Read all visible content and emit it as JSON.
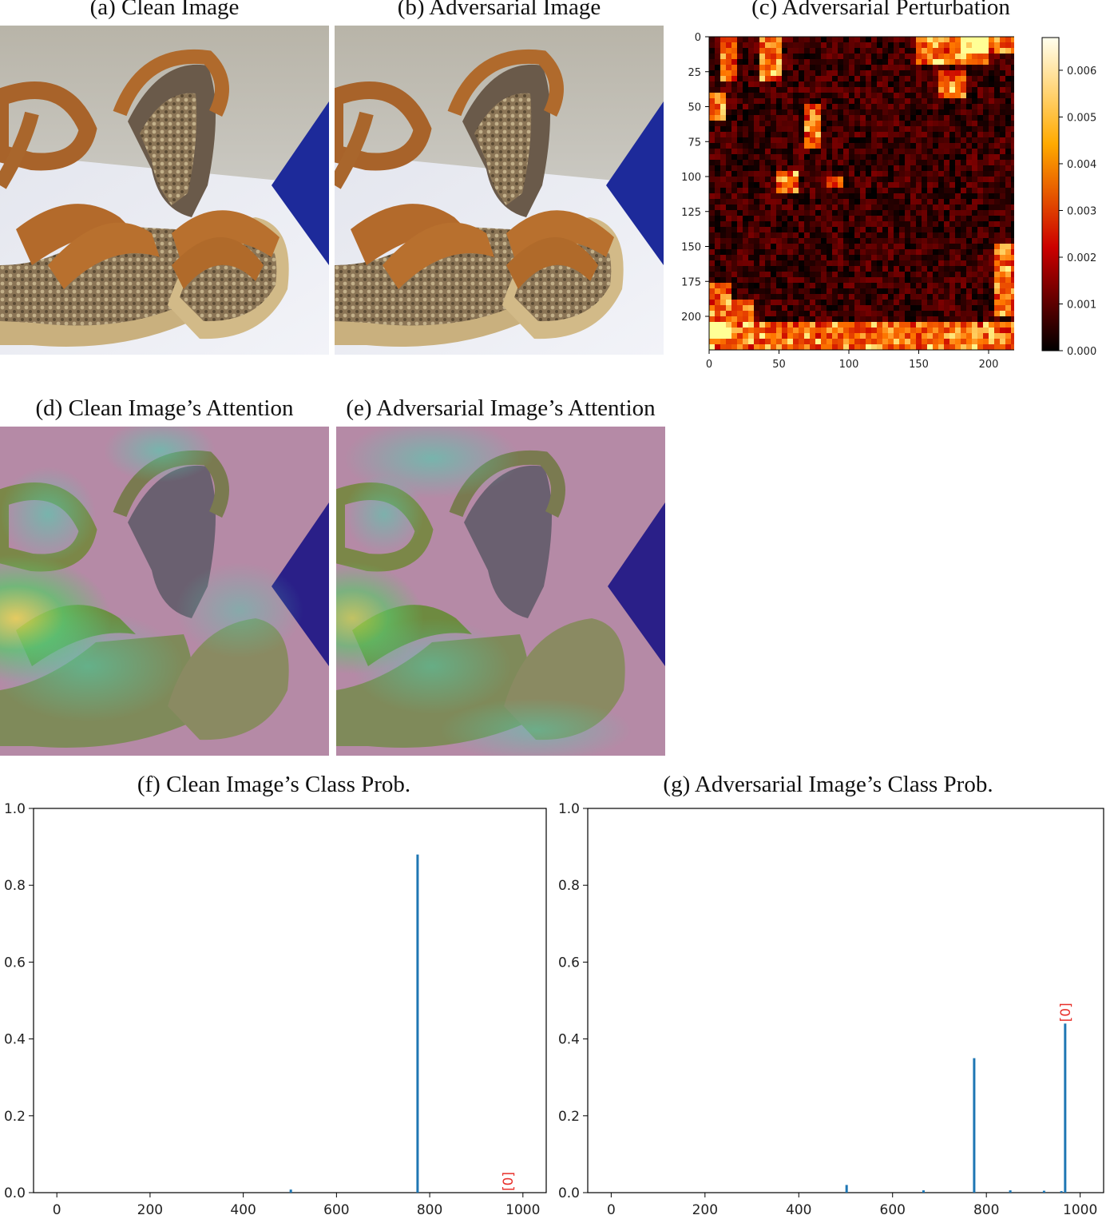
{
  "titles": {
    "a": "(a) Clean Image",
    "b": "(b) Adversarial Image",
    "c": "(c) Adversarial Perturbation",
    "d": "(d) Clean Image’s Attention",
    "e": "(e) Adversarial Image’s Attention",
    "f": "(f) Clean Image’s Class Prob.",
    "g": "(g) Adversarial Image’s Class Prob."
  },
  "colors": {
    "bar": "#1f77b4",
    "annotation": "#e8302a",
    "heat_low": "#000000",
    "heat_mid": "#cc0000",
    "heat_high": "#ffff99"
  },
  "chart_data": [
    {
      "type": "heatmap",
      "title": "(c) Adversarial Perturbation",
      "x_ticks": [
        "0",
        "50",
        "100",
        "150",
        "200"
      ],
      "y_ticks": [
        "0",
        "25",
        "50",
        "75",
        "100",
        "125",
        "150",
        "175",
        "200"
      ],
      "xlim": [
        0,
        224
      ],
      "ylim": [
        224,
        0
      ],
      "colormap": "hot",
      "colorbar_ticks": [
        "0.000",
        "0.001",
        "0.002",
        "0.003",
        "0.004",
        "0.005",
        "0.006"
      ],
      "colorbar_range": [
        0,
        0.0067
      ]
    },
    {
      "type": "bar",
      "title": "(f) Clean Image’s Class Prob.",
      "xlim": [
        -50,
        1050
      ],
      "ylim": [
        0,
        1.0
      ],
      "x_ticks": [
        "0",
        "200",
        "400",
        "600",
        "800",
        "1000"
      ],
      "y_ticks": [
        "0.0",
        "0.2",
        "0.4",
        "0.6",
        "0.8",
        "1.0"
      ],
      "bars": [
        {
          "x": 502,
          "y": 0.008
        },
        {
          "x": 774,
          "y": 0.88
        }
      ],
      "annotation": {
        "text": "[0]",
        "x": 968,
        "y": 0.0
      }
    },
    {
      "type": "bar",
      "title": "(g) Adversarial Image’s Class Prob.",
      "xlim": [
        -50,
        1050
      ],
      "ylim": [
        0,
        1.0
      ],
      "x_ticks": [
        "0",
        "200",
        "400",
        "600",
        "800",
        "1000"
      ],
      "y_ticks": [
        "0.0",
        "0.2",
        "0.4",
        "0.6",
        "0.8",
        "1.0"
      ],
      "bars": [
        {
          "x": 502,
          "y": 0.02
        },
        {
          "x": 666,
          "y": 0.006
        },
        {
          "x": 774,
          "y": 0.35
        },
        {
          "x": 851,
          "y": 0.006
        },
        {
          "x": 923,
          "y": 0.005
        },
        {
          "x": 960,
          "y": 0.004
        },
        {
          "x": 968,
          "y": 0.44
        }
      ],
      "annotation": {
        "text": "[0]",
        "x": 968,
        "y": 0.44
      }
    }
  ]
}
